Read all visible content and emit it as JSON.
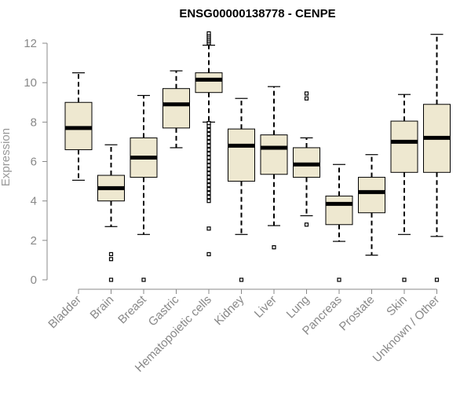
{
  "chart_data": {
    "type": "boxplot",
    "title": "ENSG00000138778 - CENPE",
    "xlabel": "",
    "ylabel": "Expression",
    "ylim": [
      0,
      12.4
    ],
    "yticks": [
      0,
      2,
      4,
      6,
      8,
      10,
      12
    ],
    "categories": [
      "Bladder",
      "Brain",
      "Breast",
      "Gastric",
      "Hematopoietic cells",
      "Kidney",
      "Liver",
      "Lung",
      "Pancreas",
      "Prostate",
      "Skin",
      "Unknown / Other"
    ],
    "boxes": [
      {
        "min": 5.05,
        "q1": 6.6,
        "median": 7.7,
        "q3": 9.0,
        "max": 10.5,
        "outliers": []
      },
      {
        "min": 2.7,
        "q1": 4.0,
        "median": 4.65,
        "q3": 5.3,
        "max": 6.85,
        "outliers": [
          0.0,
          1.05,
          1.3
        ]
      },
      {
        "min": 2.3,
        "q1": 5.2,
        "median": 6.2,
        "q3": 7.2,
        "max": 9.35,
        "outliers": [
          0.0
        ]
      },
      {
        "min": 6.7,
        "q1": 7.7,
        "median": 8.9,
        "q3": 9.7,
        "max": 10.6,
        "outliers": []
      },
      {
        "min": 8.0,
        "q1": 9.5,
        "median": 10.15,
        "q3": 10.5,
        "max": 11.9,
        "outliers": [
          1.3,
          2.6,
          4.0,
          4.2,
          4.4,
          4.6,
          4.8,
          5.0,
          5.2,
          5.4,
          5.6,
          5.8,
          6.0,
          6.2,
          6.4,
          6.6,
          6.8,
          7.0,
          7.2,
          7.4,
          7.6,
          7.8,
          7.95,
          12.0,
          12.1,
          12.2,
          12.3,
          12.4,
          12.5
        ]
      },
      {
        "min": 2.3,
        "q1": 5.0,
        "median": 6.8,
        "q3": 7.65,
        "max": 9.2,
        "outliers": [
          0.0
        ]
      },
      {
        "min": 2.75,
        "q1": 5.35,
        "median": 6.7,
        "q3": 7.35,
        "max": 9.8,
        "outliers": [
          1.65
        ]
      },
      {
        "min": 3.25,
        "q1": 5.2,
        "median": 5.85,
        "q3": 6.7,
        "max": 7.2,
        "outliers": [
          2.8,
          9.2,
          9.45
        ]
      },
      {
        "min": 1.95,
        "q1": 2.8,
        "median": 3.85,
        "q3": 4.25,
        "max": 5.85,
        "outliers": [
          0.0
        ]
      },
      {
        "min": 1.25,
        "q1": 3.4,
        "median": 4.45,
        "q3": 5.2,
        "max": 6.35,
        "outliers": []
      },
      {
        "min": 2.3,
        "q1": 5.45,
        "median": 7.0,
        "q3": 8.05,
        "max": 9.4,
        "outliers": [
          0.0
        ]
      },
      {
        "min": 2.2,
        "q1": 5.45,
        "median": 7.2,
        "q3": 8.9,
        "max": 12.45,
        "outliers": [
          0.0
        ]
      }
    ]
  }
}
